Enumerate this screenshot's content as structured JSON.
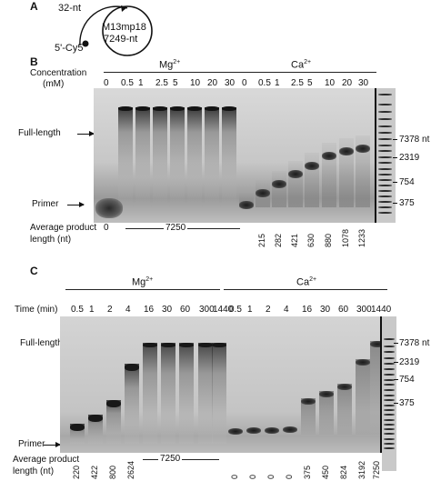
{
  "panel_a": {
    "label": "A",
    "primer": "32-nt",
    "dye": "5'-Cy5",
    "template_name": "M13mp18",
    "template_length": "7249-nt"
  },
  "panel_b": {
    "label": "B",
    "concentration_label_1": "Concentration",
    "concentration_label_2": "(mM)",
    "ion_mg": "Mg",
    "ion_ca": "Ca",
    "ion_charge": "2+",
    "mg_concentrations": [
      "0",
      "0.5",
      "1",
      "2.5",
      "5",
      "10",
      "20",
      "30"
    ],
    "ca_concentrations": [
      "0",
      "0.5",
      "1",
      "2.5",
      "5",
      "10",
      "20",
      "30"
    ],
    "full_length_label": "Full-length",
    "primer_label": "Primer",
    "average_label_1": "Average product",
    "average_label_2": "length (nt)",
    "mg_first_value": "0",
    "mg_span_value": "7250",
    "ca_values": [
      "215",
      "282",
      "421",
      "630",
      "880",
      "1078",
      "1233"
    ],
    "ladder": [
      "7378 nt",
      "2319",
      "754",
      "375"
    ]
  },
  "panel_c": {
    "label": "C",
    "time_label": "Time (min)",
    "ion_mg": "Mg",
    "ion_ca": "Ca",
    "ion_charge": "2+",
    "mg_times": [
      "0.5",
      "1",
      "2",
      "4",
      "16",
      "30",
      "60",
      "300",
      "1440"
    ],
    "ca_times": [
      "0.5",
      "1",
      "2",
      "4",
      "16",
      "30",
      "60",
      "300",
      "1440"
    ],
    "full_length_label": "Full-length",
    "primer_label": "Primer",
    "average_label_1": "Average product",
    "average_label_2": "length (nt)",
    "mg_values": [
      "220",
      "422",
      "800",
      "2624"
    ],
    "mg_span_value": "7250",
    "ca_values": [
      "0",
      "0",
      "0",
      "0",
      "375",
      "450",
      "824",
      "3192",
      "7250"
    ],
    "ladder": [
      "7378 nt",
      "2319",
      "754",
      "375"
    ]
  }
}
